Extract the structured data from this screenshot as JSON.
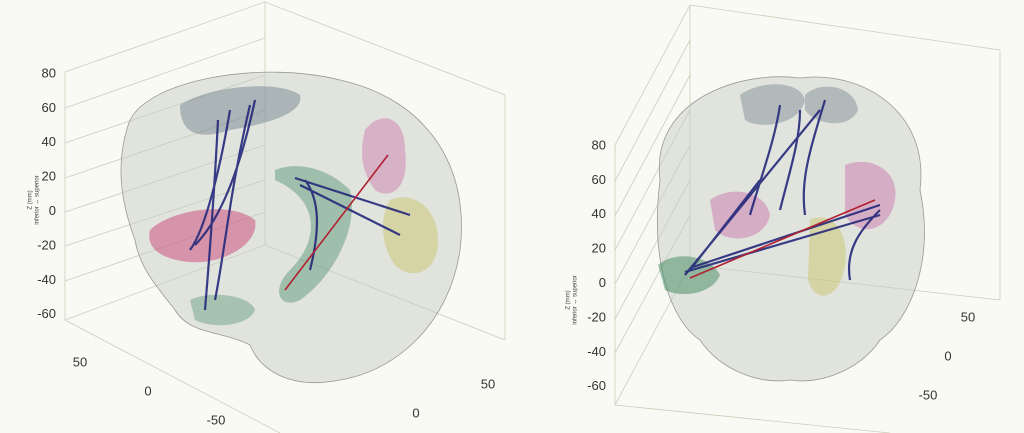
{
  "panels": [
    {
      "z_axis": {
        "label": "Z (mm)",
        "sublabel": "inferior ↔ superior",
        "ticks": [
          80,
          60,
          40,
          20,
          0,
          -20,
          -40,
          -60
        ]
      },
      "axis_a": {
        "ticks": [
          50,
          0,
          -50
        ]
      },
      "axis_b": {
        "ticks": [
          50,
          0
        ]
      }
    },
    {
      "z_axis": {
        "label": "Z (mm)",
        "sublabel": "inferior ↔ superior",
        "ticks": [
          80,
          60,
          40,
          20,
          0,
          -20,
          -40,
          -60
        ]
      },
      "axis_a": {
        "ticks": [
          50,
          0,
          -50
        ]
      }
    }
  ]
}
